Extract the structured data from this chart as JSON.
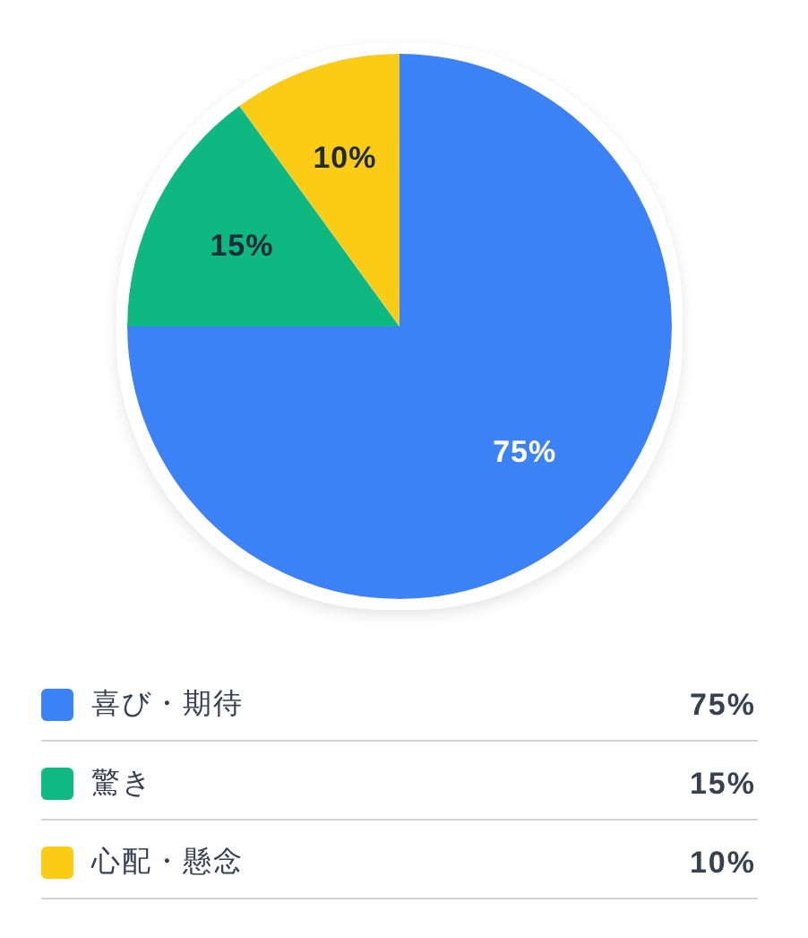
{
  "chart_data": {
    "type": "pie",
    "categories": [
      "喜び・期待",
      "驚き",
      "心配・懸念"
    ],
    "values": [
      75,
      15,
      10
    ],
    "colors": [
      "#3b82f6",
      "#10b981",
      "#facc15"
    ],
    "value_labels": [
      "75%",
      "15%",
      "10%"
    ],
    "legend": "bottom"
  }
}
